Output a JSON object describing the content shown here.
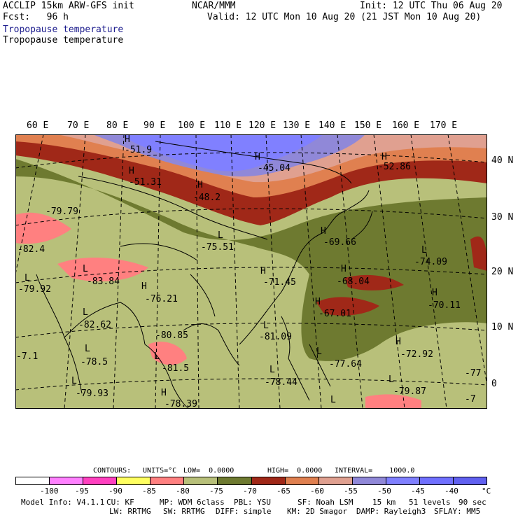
{
  "header": {
    "line1_left": "ACCLIP 15km ARW-GFS init",
    "line1_mid": "NCAR/MMM",
    "line1_right": "Init: 12 UTC Thu 06 Aug 20",
    "line2_left": "Fcst:   96 h",
    "line2_right": "Valid: 12 UTC Mon 10 Aug 20 (21 JST Mon 10 Aug 20)",
    "field_title_1": "Tropopause temperature",
    "field_title_2": "Tropopause temperature"
  },
  "lon_labels": [
    "60 E",
    "70 E",
    "80 E",
    "90 E",
    "100 E",
    "110 E",
    "120 E",
    "130 E",
    "140 E",
    "150 E",
    "160 E",
    "170 E"
  ],
  "lat_labels": [
    "40 N",
    "30 N",
    "20 N",
    "10 N",
    "0"
  ],
  "map_labels": [
    {
      "t": "H"
    },
    {
      "t": "-51.9"
    },
    {
      "t": "H"
    },
    {
      "t": "-51.31"
    },
    {
      "t": "H"
    },
    {
      "t": "-48.2"
    },
    {
      "t": "H"
    },
    {
      "t": "-45.04"
    },
    {
      "t": "H"
    },
    {
      "t": "-52.86"
    },
    {
      "t": "-79.79"
    },
    {
      "t": "L"
    },
    {
      "t": "-75.51"
    },
    {
      "t": "H"
    },
    {
      "t": "-69.66"
    },
    {
      "t": "L"
    },
    {
      "t": "-74.09"
    },
    {
      "t": "-82.4"
    },
    {
      "t": "L"
    },
    {
      "t": "-79.92"
    },
    {
      "t": "L"
    },
    {
      "t": "-83.84"
    },
    {
      "t": "H"
    },
    {
      "t": "-76.21"
    },
    {
      "t": "H"
    },
    {
      "t": "-71.45"
    },
    {
      "t": "H"
    },
    {
      "t": "-68.04"
    },
    {
      "t": "H"
    },
    {
      "t": "-70.11"
    },
    {
      "t": "H"
    },
    {
      "t": "-67.01"
    },
    {
      "t": "L"
    },
    {
      "t": "-82.62"
    },
    {
      "t": "-80.85"
    },
    {
      "t": "L"
    },
    {
      "t": "-81.09"
    },
    {
      "t": "H"
    },
    {
      "t": "-72.92"
    },
    {
      "t": "-7.1"
    },
    {
      "t": "L"
    },
    {
      "t": "-78.5"
    },
    {
      "t": "L"
    },
    {
      "t": "-81.5"
    },
    {
      "t": "L"
    },
    {
      "t": "-77.64"
    },
    {
      "t": "-77"
    },
    {
      "t": "L"
    },
    {
      "t": "-78.44"
    },
    {
      "t": "L"
    },
    {
      "t": "-79.93"
    },
    {
      "t": "H"
    },
    {
      "t": "-78.39"
    },
    {
      "t": "L"
    },
    {
      "t": "-79.87"
    },
    {
      "t": "L"
    },
    {
      "t": "-7"
    }
  ],
  "contour_line": {
    "contours_label": "CONTOURS:",
    "units": "UNITS=°C",
    "low": "LOW=  0.0000",
    "high": "HIGH=  0.0000",
    "interval": "INTERVAL=    1000.0"
  },
  "colorbar": {
    "colors": [
      "#ffffff",
      "#ff80ff",
      "#ff40c0",
      "#ffff60",
      "#ff8080",
      "#b8c07a",
      "#6e7a30",
      "#a02818",
      "#e08050",
      "#e0a090",
      "#9088d8",
      "#8080ff",
      "#7070ff",
      "#6060f0"
    ],
    "tick_labels": [
      "-100",
      "-95",
      "-90",
      "-85",
      "-80",
      "-75",
      "-70",
      "-65",
      "-60",
      "-55",
      "-50",
      "-45",
      "-40",
      "°C"
    ]
  },
  "footer": {
    "row1": [
      "Model Info: V4.1.1",
      "CU: KF",
      "MP: WDM 6class",
      "PBL: YSU",
      "SF: Noah LSM",
      "15 km",
      "51 levels",
      "90 sec"
    ],
    "row2": [
      "LW: RRTMG",
      "SW: RRTMG",
      "DIFF: simple",
      "KM: 2D Smagor",
      "DAMP: Rayleigh3",
      "SFLAY: MM5"
    ]
  }
}
